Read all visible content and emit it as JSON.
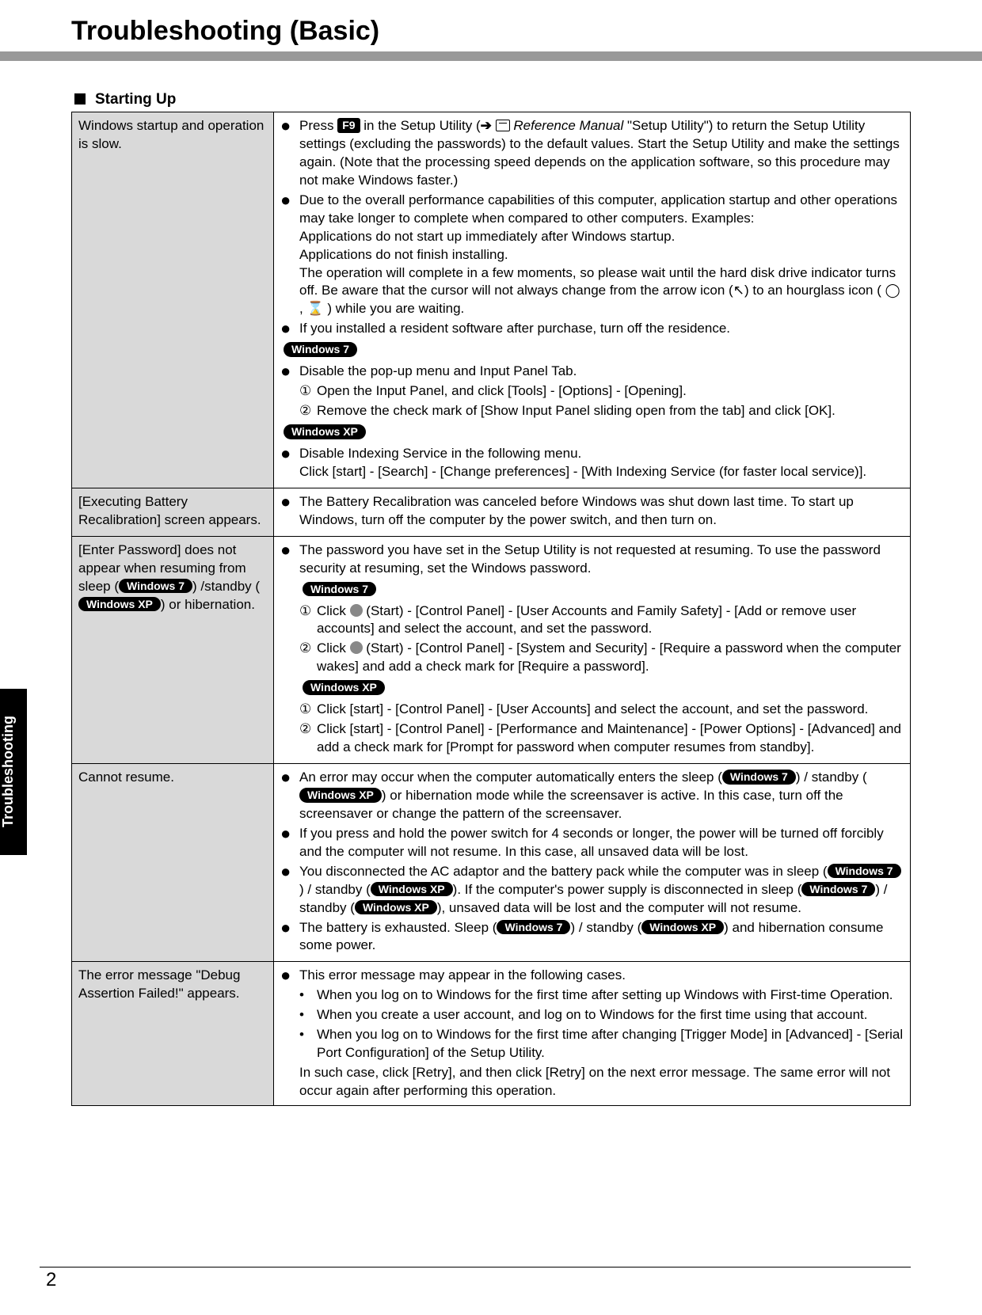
{
  "page": {
    "title": "Troubleshooting (Basic)",
    "section_heading": "Starting Up",
    "sidebar_tab": "Troubleshooting",
    "page_number": "2"
  },
  "labels": {
    "key_f9": "F9",
    "pill_win7": "Windows 7",
    "pill_winxp": "Windows XP",
    "ref_manual": "Reference Manual"
  },
  "rows": [
    {
      "symptom": "Windows startup and operation is slow.",
      "solution": {
        "b1_a": "Press ",
        "b1_b": " in the Setup Utility (",
        "b1_c": " \"Setup Utility\") to return the Setup Utility settings (excluding the passwords) to the default values. Start the Setup Utility and make the settings again. (Note that the processing speed depends on the application software, so this procedure may not make Windows faster.)",
        "b2": "Due to the overall performance capabilities of this computer, application startup and other operations may take longer to complete when compared to other computers. Examples:",
        "b2_ex1": "Applications do not start up immediately after Windows startup.",
        "b2_ex2": "Applications do not finish installing.",
        "b2_ex3": "The operation will complete in a few moments, so please wait until the hard disk drive indicator turns off. Be aware that the cursor will not always change from the arrow icon (↖) to an hourglass icon ( ◯ ,  ⌛ ) while you are waiting.",
        "b3": "If you installed a resident software after purchase, turn off the residence.",
        "w7_b1": "Disable the pop-up menu and Input Panel Tab.",
        "w7_s1": "Open the Input Panel, and click [Tools] - [Options] - [Opening].",
        "w7_s2": "Remove the check mark of [Show Input Panel sliding open from the tab] and click [OK].",
        "xp_b1": "Disable Indexing Service in the following menu.",
        "xp_b1a": "Click [start] - [Search] - [Change preferences] - [With Indexing Service (for faster local service)]."
      }
    },
    {
      "symptom": "[Executing Battery Recalibration] screen appears.",
      "solution": {
        "b1": "The Battery Recalibration was canceled before Windows was shut down last time. To start up Windows, turn off the computer by the power switch, and then turn on."
      }
    },
    {
      "symptom_a": "[Enter Password] does not appear when resuming from sleep (",
      "symptom_b": ") /standby (",
      "symptom_c": ") or hibernation.",
      "solution": {
        "b1": "The password you have set in the Setup Utility is not requested at resuming. To use the password security at resuming, set the Windows password.",
        "w7_s1a": "Click ",
        "w7_s1b": " (Start) - [Control Panel] - [User Accounts and Family Safety] - [Add or remove user accounts] and select the account, and set the password.",
        "w7_s2a": "Click ",
        "w7_s2b": " (Start) - [Control Panel] - [System and Security] - [Require a password when the computer wakes] and add a check mark for [Require a password].",
        "xp_s1": "Click [start] - [Control Panel] - [User Accounts] and select the account, and set the password.",
        "xp_s2": "Click [start] - [Control Panel] - [Performance and Maintenance] - [Power Options] - [Advanced] and add a check mark for [Prompt for password when computer resumes from standby]."
      }
    },
    {
      "symptom": "Cannot resume.",
      "solution": {
        "b1a": "An error may occur when the computer automatically enters the sleep (",
        "b1b": ") / standby (",
        "b1c": ") or hibernation mode while the screensaver is active. In this case, turn off the screensaver or change the pattern of the screensaver.",
        "b2": "If you press and hold the power switch for 4 seconds or longer, the power will be turned off forcibly and the computer will not resume. In this case, all unsaved data will be lost.",
        "b3a": "You disconnected the AC adaptor and the battery pack while the computer was in sleep (",
        "b3b": ") / standby (",
        "b3c": "). If the computer's power supply is disconnected in sleep (",
        "b3d": ") / standby (",
        "b3e": "), unsaved data will be lost and the computer will not resume.",
        "b4a": "The battery is exhausted. Sleep (",
        "b4b": ") / standby (",
        "b4c": ") and hibernation consume some power."
      }
    },
    {
      "symptom": "The error message \"Debug Assertion Failed!\" appears.",
      "solution": {
        "b1": "This error message may appear in the following cases.",
        "s1": "When you log on to Windows for the first time after setting up Windows with First-time Operation.",
        "s2": "When you create a user account, and log on to Windows for the first time using that account.",
        "s3": "When you log on to Windows for the first time after changing [Trigger Mode] in [Advanced] - [Serial Port Configuration] of the Setup Utility.",
        "tail": "In such case, click [Retry], and then click [Retry] on the next error message. The same error will not occur again after performing this operation."
      }
    }
  ]
}
